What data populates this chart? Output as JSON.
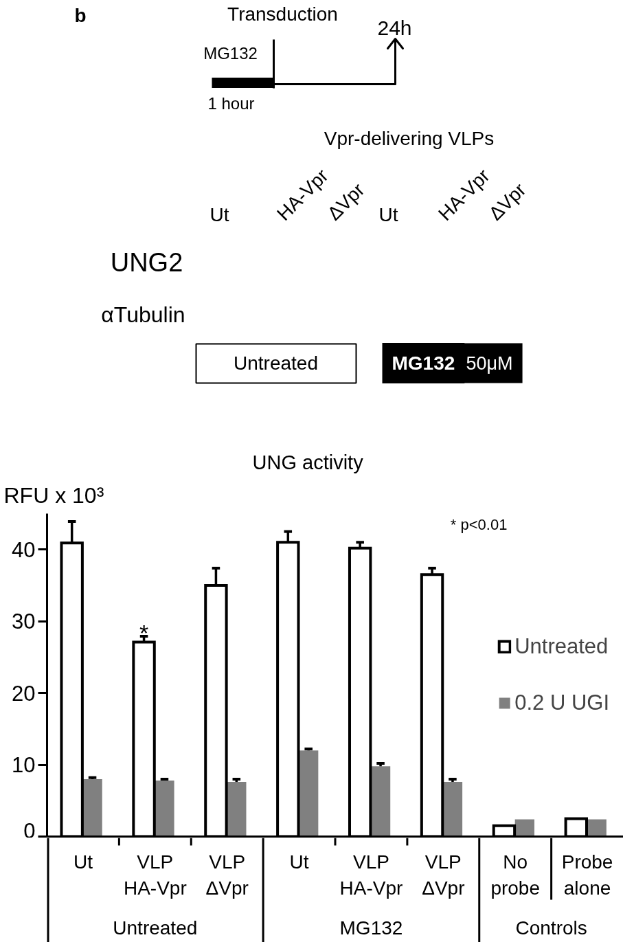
{
  "chart_data": [
    {
      "type": "other",
      "annotations": [
        "b",
        "Transduction",
        "MG132",
        "1 hour",
        "24h",
        "Vpr-delivering VLPs",
        "Ut",
        "HA-Vpr",
        "ΔVpr",
        "Ut",
        "HA-Vpr",
        "ΔVpr",
        "UNG2",
        "αTubulin",
        "Untreated",
        "MG132",
        "50μM"
      ]
    },
    {
      "type": "bar",
      "title": "UNG activity",
      "ylabel": "RFU x 10³",
      "categories": [
        "Ut",
        "VLP\nHA-Vpr",
        "VLP\nΔVpr",
        "Ut",
        "VLP\nHA-Vpr",
        "VLP\nΔVpr",
        "No\nprobe",
        "Probe\nalone"
      ],
      "series": [
        {
          "name": "Untreated",
          "color": "#ffffff",
          "values": [
            40.9,
            27.1,
            35.0,
            41.0,
            40.2,
            36.5,
            1.5,
            2.5
          ],
          "errors": [
            [
              40.9,
              43.9
            ],
            [
              27.1,
              27.9
            ],
            [
              35.0,
              37.4
            ],
            [
              41.0,
              42.5
            ],
            [
              40.2,
              41.0
            ],
            [
              36.5,
              37.4
            ],
            null,
            null
          ],
          "value_labels": [
            null,
            "*",
            null,
            null,
            null,
            null,
            null,
            null
          ]
        },
        {
          "name": "0.2 U UGI",
          "color": "#808080",
          "values": [
            8.0,
            7.8,
            7.6,
            12.0,
            9.8,
            7.6,
            2.4,
            2.4
          ],
          "errors": [
            [
              8.0,
              8.2
            ],
            [
              7.8,
              8.0
            ],
            [
              7.6,
              8.0
            ],
            [
              12.0,
              12.2
            ],
            [
              9.8,
              10.2
            ],
            [
              7.6,
              8.0
            ],
            null,
            null
          ]
        }
      ],
      "ylim": [
        0,
        45
      ],
      "yticks": [
        0,
        10,
        20,
        30,
        40
      ],
      "legend": "right",
      "annotations": [
        "Untreated",
        "MG132",
        "Controls",
        "* p<0.01"
      ]
    }
  ]
}
